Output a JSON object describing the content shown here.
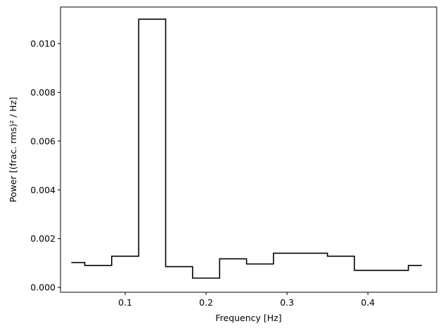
{
  "chart_data": {
    "type": "line",
    "subtype": "step",
    "title": "",
    "xlabel": "Frequency [Hz]",
    "ylabel": "Power [(frac. rms)² / Hz]",
    "xlim": [
      0.02,
      0.485
    ],
    "ylim": [
      -0.0002,
      0.0115
    ],
    "x_ticks": [
      0.1,
      0.2,
      0.3,
      0.4
    ],
    "x_tick_labels": [
      "0.1",
      "0.2",
      "0.3",
      "0.4"
    ],
    "y_ticks": [
      0.0,
      0.002,
      0.004,
      0.006,
      0.008,
      0.01
    ],
    "y_tick_labels": [
      "0.000",
      "0.002",
      "0.004",
      "0.006",
      "0.008",
      "0.010"
    ],
    "grid": false,
    "line_color": "#000000",
    "bins": [
      {
        "x0": 0.0333,
        "x1": 0.05,
        "y": 0.00102
      },
      {
        "x0": 0.05,
        "x1": 0.0833,
        "y": 0.0009
      },
      {
        "x0": 0.0833,
        "x1": 0.1167,
        "y": 0.00128
      },
      {
        "x0": 0.1167,
        "x1": 0.15,
        "y": 0.011
      },
      {
        "x0": 0.15,
        "x1": 0.1833,
        "y": 0.00085
      },
      {
        "x0": 0.1833,
        "x1": 0.2167,
        "y": 0.00038
      },
      {
        "x0": 0.2167,
        "x1": 0.25,
        "y": 0.00117
      },
      {
        "x0": 0.25,
        "x1": 0.2833,
        "y": 0.00096
      },
      {
        "x0": 0.2833,
        "x1": 0.35,
        "y": 0.0014
      },
      {
        "x0": 0.35,
        "x1": 0.3833,
        "y": 0.00128
      },
      {
        "x0": 0.3833,
        "x1": 0.45,
        "y": 0.0007
      },
      {
        "x0": 0.45,
        "x1": 0.4667,
        "y": 0.0009
      }
    ]
  }
}
